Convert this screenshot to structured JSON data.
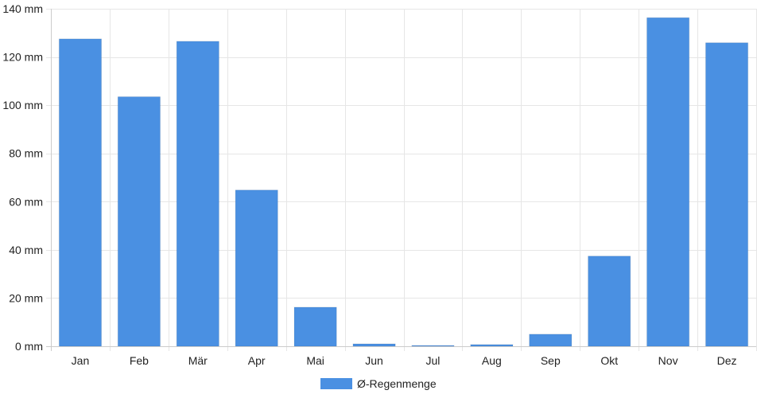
{
  "chart_data": {
    "type": "bar",
    "categories": [
      "Jan",
      "Feb",
      "Mär",
      "Apr",
      "Mai",
      "Jun",
      "Jul",
      "Aug",
      "Sep",
      "Okt",
      "Nov",
      "Dez"
    ],
    "series": [
      {
        "name": "Ø-Regenmenge",
        "values": [
          127.5,
          103.5,
          126.5,
          64.8,
          16.2,
          1.0,
          0.2,
          0.7,
          5.0,
          37.4,
          136.3,
          125.9
        ],
        "color": "#4a90e2"
      }
    ],
    "unit": "mm",
    "ylim": [
      0,
      140
    ],
    "yticks": [
      "0 mm",
      "20 mm",
      "40 mm",
      "60 mm",
      "80 mm",
      "100 mm",
      "120 mm",
      "140 mm"
    ],
    "grid": true,
    "legend_position": "bottom-center"
  }
}
